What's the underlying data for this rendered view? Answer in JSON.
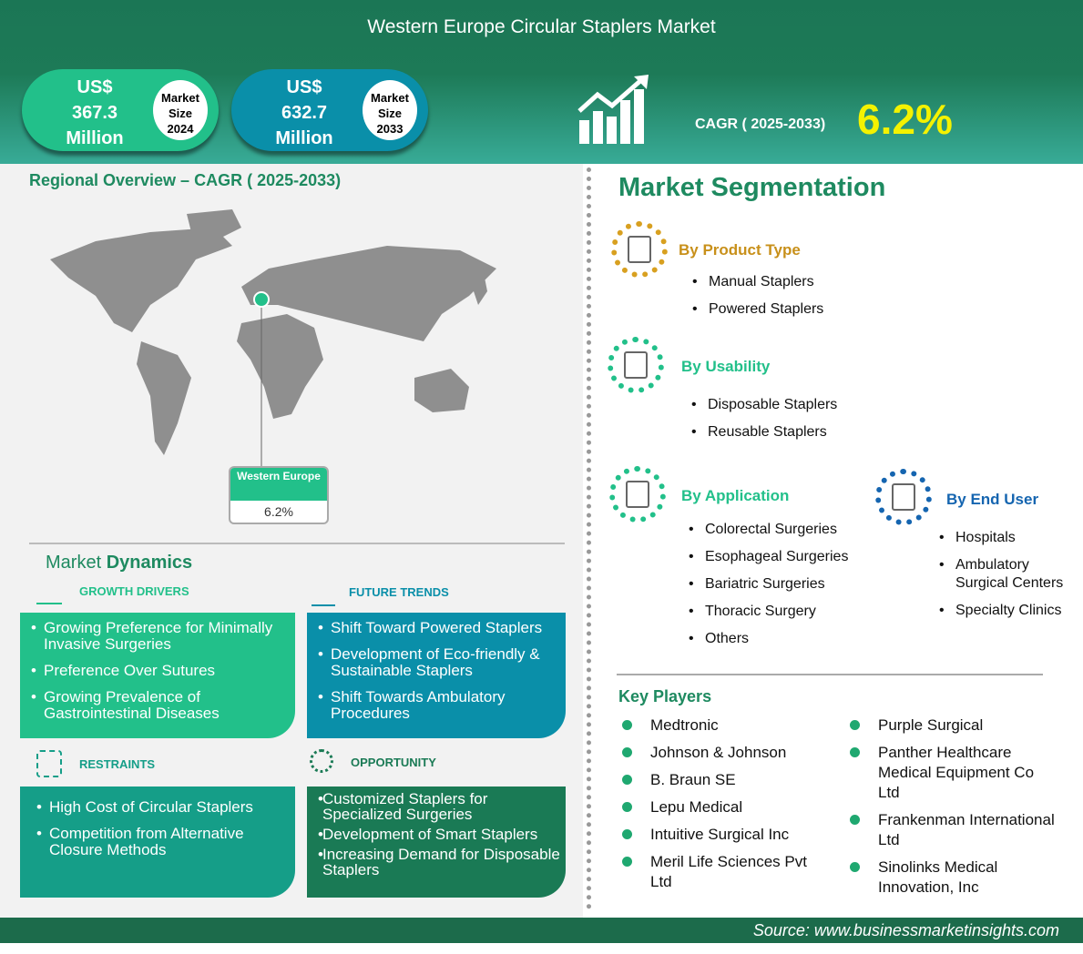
{
  "header": {
    "title": "Western Europe Circular Staplers Market",
    "market_2024": {
      "currency": "US$",
      "value": "367.3",
      "unit": "Million",
      "label_line1": "Market",
      "label_line2": "Size",
      "year": "2024"
    },
    "market_2033": {
      "currency": "US$",
      "value": "632.7",
      "unit": "Million",
      "label_line1": "Market",
      "label_line2": "Size",
      "year": "2033"
    },
    "cagr_label": "CAGR ( 2025-2033)",
    "cagr_value": "6.2%",
    "icon": "growth-chart-icon"
  },
  "regional": {
    "title": "Regional Overview – CAGR ( 2025-2033)",
    "region": "Western Europe",
    "value": "6.2%"
  },
  "dynamics": {
    "title_light": "Market ",
    "title_bold": "Dynamics",
    "growth_drivers": {
      "title": "GROWTH DRIVERS",
      "items": [
        "Growing Preference for Minimally Invasive Surgeries",
        "Preference Over Sutures",
        "Growing Prevalence of Gastrointestinal Diseases"
      ]
    },
    "future_trends": {
      "title": "FUTURE TRENDS",
      "items": [
        "Shift Toward Powered Staplers",
        "Development of Eco-friendly & Sustainable Staplers",
        "Shift Towards Ambulatory Procedures"
      ]
    },
    "restraints": {
      "title": "RESTRAINTS",
      "items": [
        "High Cost of Circular Staplers",
        "Competition from Alternative Closure Methods"
      ]
    },
    "opportunity": {
      "title": "OPPORTUNITY",
      "items": [
        "Customized Staplers for Specialized Surgeries",
        "Development of Smart Staplers",
        "Increasing Demand for Disposable Staplers"
      ]
    }
  },
  "segmentation": {
    "title": "Market Segmentation",
    "product_type": {
      "title": "By Product Type",
      "items": [
        "Manual Staplers",
        "Powered Staplers"
      ]
    },
    "usability": {
      "title": "By Usability",
      "items": [
        "Disposable Staplers",
        "Reusable Staplers"
      ]
    },
    "application": {
      "title": "By Application",
      "items": [
        "Colorectal Surgeries",
        "Esophageal Surgeries",
        "Bariatric Surgeries",
        "Thoracic Surgery",
        "Others"
      ]
    },
    "end_user": {
      "title": "By End User",
      "items": [
        "Hospitals",
        "Ambulatory Surgical Centers",
        "Specialty Clinics"
      ]
    }
  },
  "key_players": {
    "title": "Key Players",
    "col1": [
      "Medtronic",
      "Johnson & Johnson",
      "B. Braun SE",
      "Lepu Medical",
      "Intuitive Surgical Inc",
      "Meril Life Sciences Pvt Ltd"
    ],
    "col2": [
      "Purple Surgical",
      "Panther Healthcare Medical Equipment Co Ltd",
      "Frankenman International Ltd",
      "Sinolinks Medical Innovation, Inc"
    ]
  },
  "footer": {
    "source": "Source:  www.businessmarketinsights.com"
  },
  "colors": {
    "header": "#1d7a57",
    "green": "#22c08a",
    "blue": "#0a8fa9",
    "teal": "#159e88",
    "dark_green": "#1a7a55",
    "cagr": "#f4f200"
  }
}
